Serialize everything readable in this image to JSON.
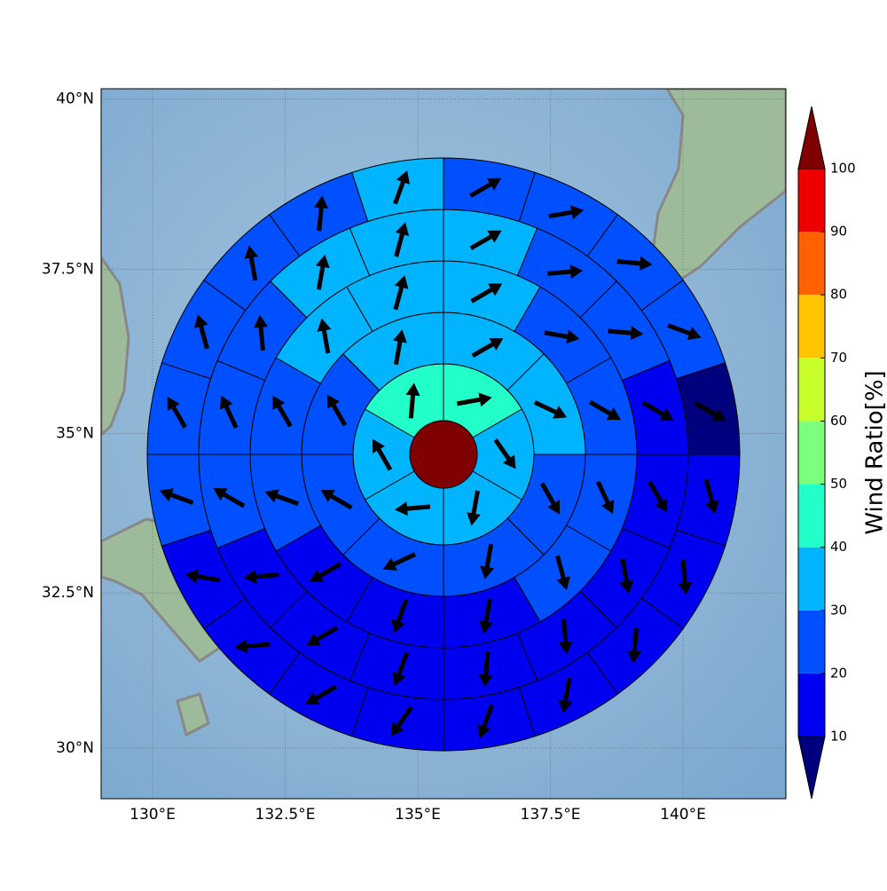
{
  "chart_data": {
    "type": "polar_sectors",
    "y_projection": "mercator",
    "xlim": [
      129.03,
      141.94
    ],
    "ylim": [
      29.17,
      40.15
    ],
    "xticks": [
      {
        "value": 130,
        "label": "130°E"
      },
      {
        "value": 132.5,
        "label": "132.5°E"
      },
      {
        "value": 135,
        "label": "135°E"
      },
      {
        "value": 137.5,
        "label": "137.5°E"
      },
      {
        "value": 140,
        "label": "140°E"
      }
    ],
    "yticks": [
      {
        "value": 30,
        "label": "30°N"
      },
      {
        "value": 32.5,
        "label": "32.5°N"
      },
      {
        "value": 35,
        "label": "35°N"
      },
      {
        "value": 37.5,
        "label": "37.5°N"
      },
      {
        "value": 40,
        "label": "40°N"
      }
    ],
    "grid": true,
    "center_value": 105,
    "rings": [
      {
        "values": [
          45,
          35,
          35,
          35,
          35,
          45
        ],
        "directions": [
          80,
          145,
          190,
          265,
          330,
          5
        ]
      },
      {
        "values": [
          35,
          35,
          25,
          25,
          25,
          25,
          25,
          35
        ],
        "directions": [
          60,
          115,
          150,
          190,
          245,
          300,
          330,
          10
        ]
      },
      {
        "values": [
          35,
          25,
          25,
          25,
          25,
          15,
          15,
          15,
          25,
          25,
          35,
          35
        ],
        "directions": [
          60,
          100,
          120,
          155,
          165,
          190,
          200,
          240,
          290,
          330,
          350,
          15
        ]
      },
      {
        "values": [
          35,
          25,
          25,
          15,
          15,
          15,
          15,
          15,
          15,
          15,
          15,
          25,
          25,
          25,
          35,
          35
        ],
        "directions": [
          60,
          85,
          95,
          120,
          150,
          170,
          175,
          185,
          200,
          240,
          265,
          300,
          335,
          355,
          10,
          15
        ]
      },
      {
        "values": [
          25,
          25,
          25,
          25,
          5,
          15,
          15,
          15,
          15,
          15,
          15,
          15,
          15,
          15,
          25,
          25,
          25,
          25,
          25,
          35
        ],
        "directions": [
          60,
          80,
          95,
          110,
          120,
          165,
          175,
          185,
          190,
          200,
          215,
          240,
          265,
          280,
          290,
          330,
          345,
          350,
          5,
          20
        ]
      }
    ],
    "colorbar": {
      "label": "Wind Ratio[%]",
      "ticks": [
        10,
        20,
        30,
        40,
        50,
        60,
        70,
        80,
        90,
        100
      ],
      "colors": [
        "#0000f0",
        "#0050ff",
        "#00b4ff",
        "#22ffc9",
        "#7cff7c",
        "#c8ff2a",
        "#ffc400",
        "#ff6000",
        "#ee0000"
      ],
      "under_color": "#00007f",
      "over_color": "#7f0000"
    }
  }
}
